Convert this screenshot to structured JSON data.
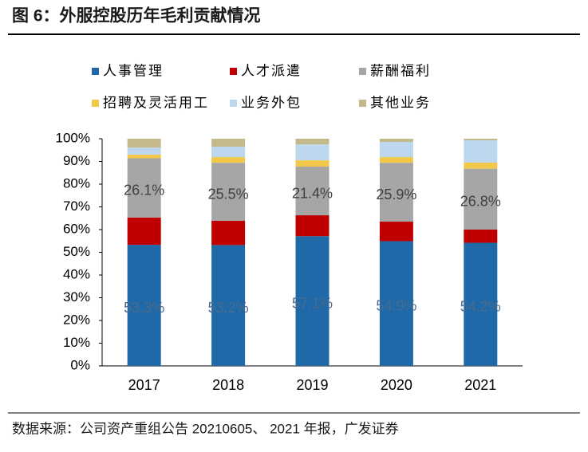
{
  "chart_data": {
    "type": "stacked-bar",
    "title": "图 6：外服控股历年毛利贡献情况",
    "source": "数据来源：公司资产重组公告 20210605、 2021 年报，广发证券",
    "categories": [
      "2017",
      "2018",
      "2019",
      "2020",
      "2021"
    ],
    "series": [
      {
        "name": "人事管理",
        "color": "#1f69a8",
        "values": [
          53.3,
          53.2,
          57.1,
          54.9,
          54.2
        ],
        "value_labels": [
          "53.3%",
          "53.2%",
          "57.1%",
          "54.9%",
          "54.2%"
        ]
      },
      {
        "name": "人才派遣",
        "color": "#c00000",
        "values": [
          12.0,
          10.7,
          9.2,
          8.6,
          5.8
        ]
      },
      {
        "name": "薪酬福利",
        "color": "#a6a6a6",
        "values": [
          26.1,
          25.5,
          21.4,
          25.9,
          26.8
        ],
        "value_labels": [
          "26.1%",
          "25.5%",
          "21.4%",
          "25.9%",
          "26.8%"
        ]
      },
      {
        "name": "招聘及灵活用工",
        "color": "#f2c84b",
        "values": [
          1.6,
          2.5,
          2.8,
          2.5,
          2.7
        ]
      },
      {
        "name": "业务外包",
        "color": "#bdd7ee",
        "values": [
          3.1,
          4.6,
          7.0,
          6.7,
          9.8
        ]
      },
      {
        "name": "其他业务",
        "color": "#c4b98a",
        "values": [
          3.9,
          3.5,
          2.5,
          1.4,
          0.7
        ]
      }
    ],
    "ylim": [
      0,
      100
    ],
    "yticks": [
      {
        "value": 0,
        "label": "0%"
      },
      {
        "value": 10,
        "label": "10%"
      },
      {
        "value": 20,
        "label": "20%"
      },
      {
        "value": 30,
        "label": "30%"
      },
      {
        "value": 40,
        "label": "40%"
      },
      {
        "value": 50,
        "label": "50%"
      },
      {
        "value": 60,
        "label": "60%"
      },
      {
        "value": 70,
        "label": "70%"
      },
      {
        "value": 80,
        "label": "80%"
      },
      {
        "value": 90,
        "label": "90%"
      },
      {
        "value": 100,
        "label": "100%"
      }
    ],
    "legend": "top"
  }
}
